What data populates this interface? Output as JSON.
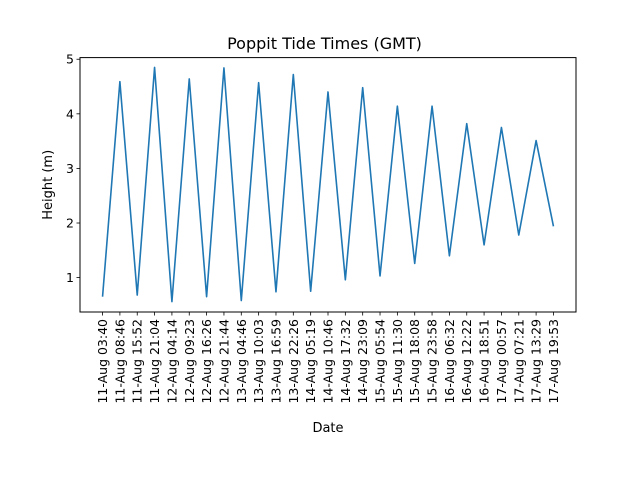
{
  "chart_data": {
    "type": "line",
    "title": "Poppit Tide Times (GMT)",
    "xlabel": "Date",
    "ylabel": "Height (m)",
    "ylim": [
      0.37,
      5.03
    ],
    "yticks": [
      1,
      2,
      3,
      4,
      5
    ],
    "grid": false,
    "legend": "none",
    "categories": [
      "11-Aug 03:40",
      "11-Aug 08:46",
      "11-Aug 15:52",
      "11-Aug 21:04",
      "12-Aug 04:14",
      "12-Aug 09:23",
      "12-Aug 16:26",
      "12-Aug 21:44",
      "13-Aug 04:46",
      "13-Aug 10:03",
      "13-Aug 16:59",
      "13-Aug 22:26",
      "14-Aug 05:19",
      "14-Aug 10:46",
      "14-Aug 17:32",
      "14-Aug 23:09",
      "15-Aug 05:54",
      "15-Aug 11:30",
      "15-Aug 18:08",
      "15-Aug 23:58",
      "16-Aug 06:32",
      "16-Aug 12:22",
      "16-Aug 18:51",
      "17-Aug 00:57",
      "17-Aug 07:21",
      "17-Aug 13:29",
      "17-Aug 19:53"
    ],
    "series": [
      {
        "values": [
          0.65,
          4.59,
          0.68,
          4.85,
          0.56,
          4.64,
          0.65,
          4.84,
          0.58,
          4.57,
          0.74,
          4.72,
          0.75,
          4.4,
          0.96,
          4.48,
          1.03,
          4.14,
          1.26,
          4.14,
          1.4,
          3.82,
          1.6,
          3.75,
          1.78,
          3.51,
          1.94
        ],
        "color": "#1f77b4"
      }
    ]
  }
}
